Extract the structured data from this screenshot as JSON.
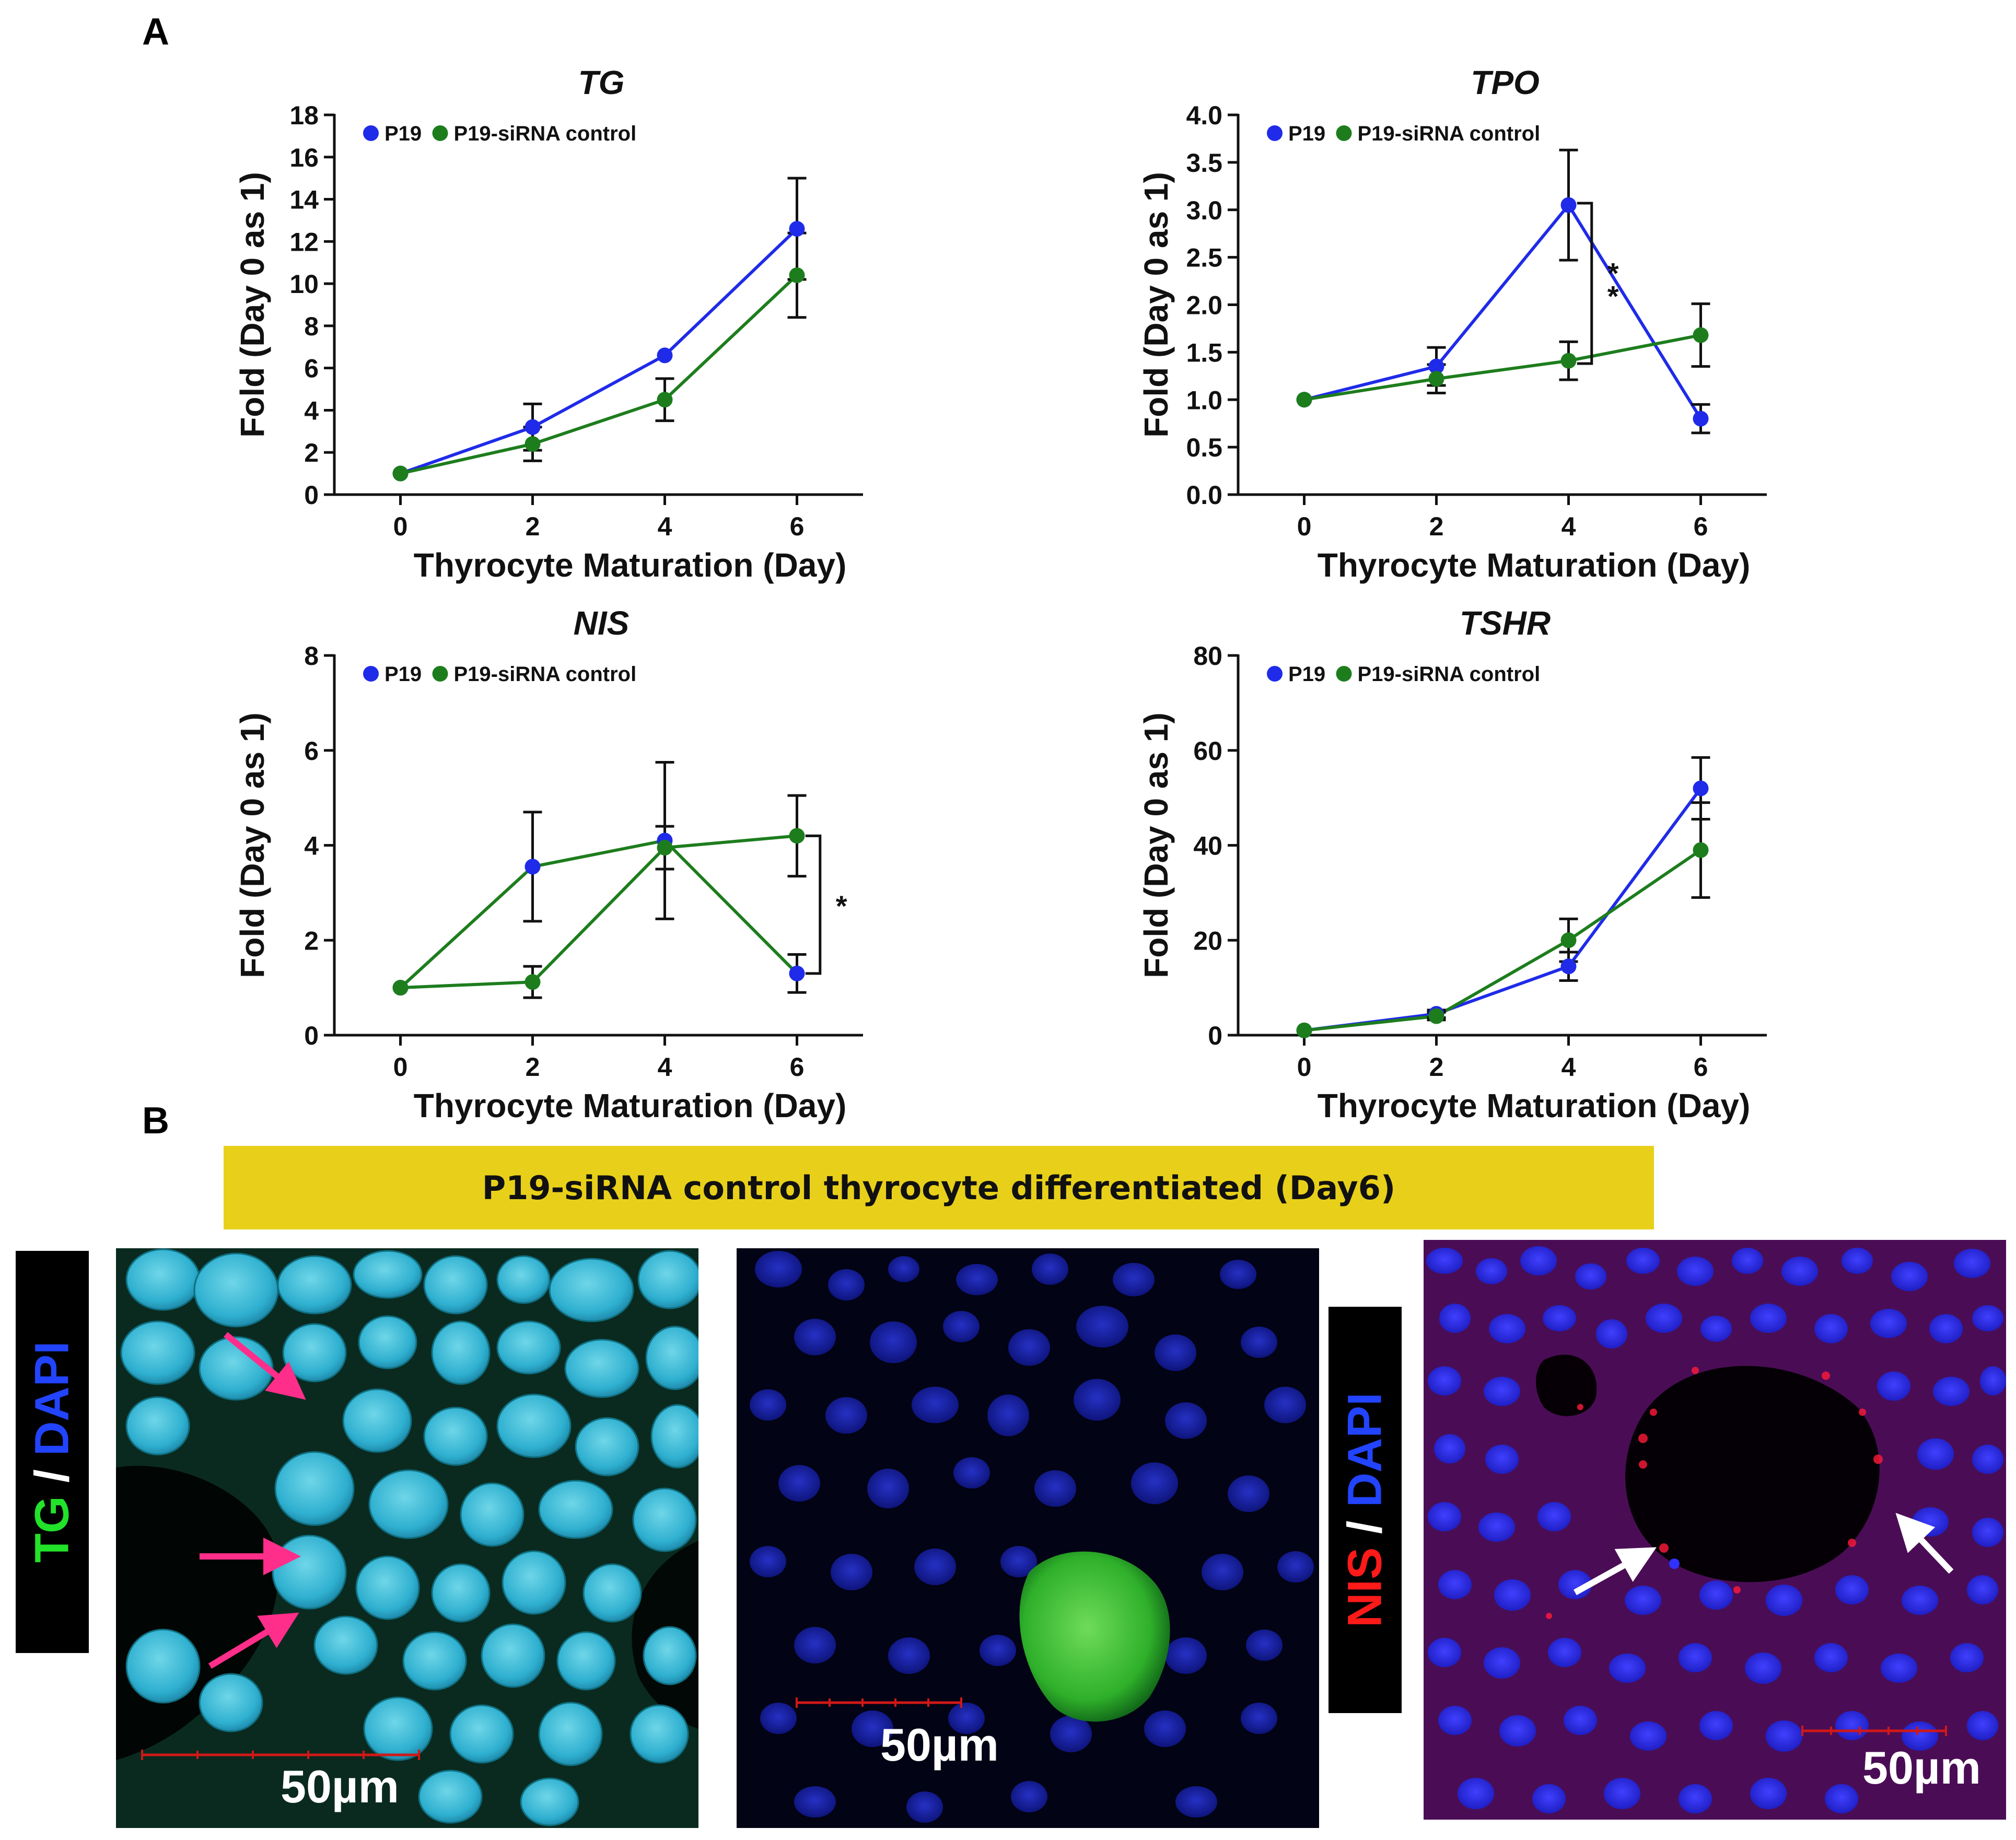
{
  "panel_a_label": "A",
  "panel_b_label": "B",
  "banner_text": "P19-siRNA control thyrocyte differentiated (Day6)",
  "colors": {
    "p19": "#1f2be8",
    "sirna": "#1d7d1d",
    "banner": "#e8d01a"
  },
  "chart_data": [
    {
      "type": "line",
      "title": "TG",
      "xlabel": "Thyrocyte Maturation (Day)",
      "ylabel": "Fold (Day 0 as 1)",
      "x": [
        0,
        2,
        4,
        6
      ],
      "x_ticks": [
        "0",
        "2",
        "4",
        "6"
      ],
      "xlim": [
        -1,
        7
      ],
      "ylim": [
        0,
        18
      ],
      "y_ticks": [
        "0",
        "2",
        "4",
        "6",
        "8",
        "10",
        "12",
        "14",
        "16",
        "18"
      ],
      "legend": "top-left",
      "series": [
        {
          "name": "P19",
          "color": "#1f2be8",
          "values": [
            1.0,
            3.2,
            6.6,
            12.6
          ],
          "err": [
            0,
            1.1,
            0,
            2.4
          ]
        },
        {
          "name": "P19-siRNA control",
          "color": "#1d7d1d",
          "values": [
            1.0,
            2.4,
            4.5,
            10.4
          ],
          "err": [
            0,
            0.8,
            1.0,
            2.0
          ]
        }
      ],
      "significance": null
    },
    {
      "type": "line",
      "title": "TPO",
      "xlabel": "Thyrocyte Maturation (Day)",
      "ylabel": "Fold (Day 0 as 1)",
      "x": [
        0,
        2,
        4,
        6
      ],
      "x_ticks": [
        "0",
        "2",
        "4",
        "6"
      ],
      "xlim": [
        -1,
        7
      ],
      "ylim": [
        0,
        4
      ],
      "y_ticks": [
        "0.0",
        "0.5",
        "1.0",
        "1.5",
        "2.0",
        "2.5",
        "3.0",
        "3.5",
        "4.0"
      ],
      "legend": "top-left",
      "series": [
        {
          "name": "P19",
          "color": "#1f2be8",
          "values": [
            1.0,
            1.35,
            3.05,
            0.8
          ],
          "err": [
            0,
            0.2,
            0.58,
            0.15
          ]
        },
        {
          "name": "P19-siRNA control",
          "color": "#1d7d1d",
          "values": [
            1.0,
            1.22,
            1.41,
            1.68
          ],
          "err": [
            0,
            0.15,
            0.2,
            0.33
          ]
        }
      ],
      "significance": {
        "label": "**",
        "x": 4.35,
        "y_top": 3.07,
        "y_bottom": 1.38
      }
    },
    {
      "type": "line",
      "title": "NIS",
      "xlabel": "Thyrocyte Maturation (Day)",
      "ylabel": "Fold (Day 0 as 1)",
      "x": [
        0,
        2,
        4,
        6
      ],
      "x_ticks": [
        "0",
        "2",
        "4",
        "6"
      ],
      "xlim": [
        -1,
        7
      ],
      "ylim": [
        0,
        8
      ],
      "y_ticks": [
        "0",
        "2",
        "4",
        "6",
        "8"
      ],
      "legend": "top-left",
      "series": [
        {
          "name": "P19",
          "color": "#1f2be8",
          "line_color": "#1d7d1d",
          "values": [
            1.0,
            3.55,
            4.1,
            1.3
          ],
          "err": [
            0,
            1.15,
            1.65,
            0.4
          ]
        },
        {
          "name": "P19-siRNA control",
          "color": "#1d7d1d",
          "values": [
            1.0,
            1.12,
            3.95,
            4.2
          ],
          "err": [
            0,
            0.33,
            0.45,
            0.85
          ]
        }
      ],
      "significance": {
        "label": "*",
        "x": 6.35,
        "y_top": 4.2,
        "y_bottom": 1.3
      }
    },
    {
      "type": "line",
      "title": "TSHR",
      "xlabel": "Thyrocyte Maturation (Day)",
      "ylabel": "Fold (Day 0 as 1)",
      "x": [
        0,
        2,
        4,
        6
      ],
      "x_ticks": [
        "0",
        "2",
        "4",
        "6"
      ],
      "xlim": [
        -1,
        7
      ],
      "ylim": [
        0,
        80
      ],
      "y_ticks": [
        "0",
        "20",
        "40",
        "60",
        "80"
      ],
      "legend": "top-left",
      "series": [
        {
          "name": "P19",
          "color": "#1f2be8",
          "values": [
            1.0,
            4.5,
            14.5,
            52.0
          ],
          "err": [
            0,
            0.8,
            3.0,
            6.5
          ]
        },
        {
          "name": "P19-siRNA control",
          "color": "#1d7d1d",
          "values": [
            1.0,
            4.0,
            20.0,
            39.0
          ],
          "err": [
            0,
            0.8,
            4.5,
            10.0
          ]
        }
      ],
      "significance": null
    }
  ],
  "micrographs": [
    {
      "scale_label": "50µm",
      "side_label_parts": [
        "TG",
        " / ",
        "DAPI"
      ],
      "side_label_colors": [
        "#22e22a",
        "#ffffff",
        "#2244ff"
      ]
    },
    {
      "scale_label": "50µm"
    },
    {
      "scale_label": "50µm",
      "side_label_parts": [
        "NIS",
        " / ",
        "DAPI"
      ],
      "side_label_colors": [
        "#ff1a1a",
        "#ffffff",
        "#2244ff"
      ]
    }
  ]
}
